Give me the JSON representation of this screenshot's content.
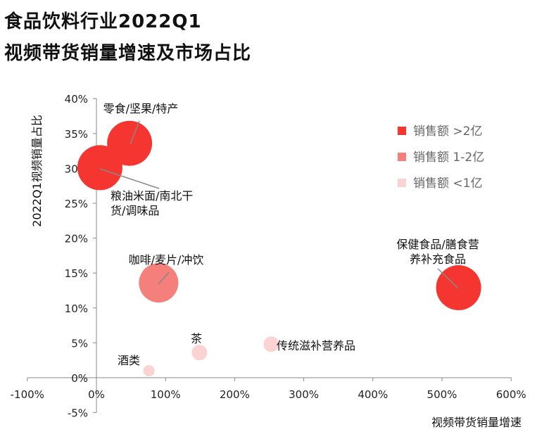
{
  "title_line1": "食品饮料行业2022Q1",
  "title_line2": "视频带货销量增速及市场占比",
  "chart_data": {
    "type": "scatter",
    "xlabel": "视频带货销量增速",
    "ylabel": "2022Q1视频销量占比",
    "xlim": [
      -100,
      600
    ],
    "ylim": [
      -5,
      40
    ],
    "x_ticks": [
      -100,
      0,
      100,
      200,
      300,
      400,
      500,
      600
    ],
    "x_tick_labels": [
      "-100%",
      "0%",
      "100%",
      "200%",
      "300%",
      "400%",
      "500%",
      "600%"
    ],
    "y_ticks": [
      -5,
      0,
      5,
      10,
      15,
      20,
      25,
      30,
      35,
      40
    ],
    "y_tick_labels": [
      "-5%",
      "0%",
      "5%",
      "10%",
      "15%",
      "20%",
      "25%",
      "30%",
      "35%",
      "40%"
    ],
    "legend": {
      "position": "top-right",
      "entries": [
        {
          "label": "销售额 >2亿",
          "color": "#f5352f"
        },
        {
          "label": "销售额 1-2亿",
          "color": "#f47f7b"
        },
        {
          "label": "销售额 <1亿",
          "color": "#fad3d2"
        }
      ]
    },
    "points": [
      {
        "name": "零食/坚果/特产",
        "x": 48,
        "y": 33.6,
        "group": 0,
        "size": 3,
        "label_lines": [
          "零食/坚果/特产"
        ]
      },
      {
        "name": "粮油米面/南北干货/调味品",
        "x": 5,
        "y": 30.1,
        "group": 0,
        "size": 3,
        "label_lines": [
          "粮油米面/南北干",
          "货/调味品"
        ]
      },
      {
        "name": "保健食品/膳食营养补充食品",
        "x": 524,
        "y": 12.9,
        "group": 0,
        "size": 3,
        "label_lines": [
          "保健食品/膳食营",
          "养补充食品"
        ]
      },
      {
        "name": "咖啡/麦片/冲饮",
        "x": 90,
        "y": 13.6,
        "group": 1,
        "size": 2,
        "label_lines": [
          "咖啡/麦片/冲饮"
        ]
      },
      {
        "name": "茶",
        "x": 149,
        "y": 3.6,
        "group": 2,
        "size": 1,
        "label_lines": [
          "茶"
        ]
      },
      {
        "name": "传统滋补营养品",
        "x": 253,
        "y": 4.8,
        "group": 2,
        "size": 1,
        "label_lines": [
          "传统滋补营养品"
        ]
      },
      {
        "name": "酒类",
        "x": 76,
        "y": 1.0,
        "group": 2,
        "size": 0,
        "label_lines": [
          "酒类"
        ]
      }
    ]
  }
}
